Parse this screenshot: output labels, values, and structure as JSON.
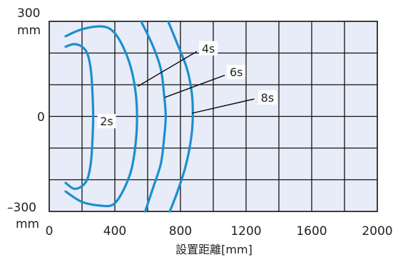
{
  "chart_data": {
    "type": "line",
    "xlabel": "設置距離[mm]",
    "xlim": [
      0,
      2000
    ],
    "ylim": [
      -300,
      300
    ],
    "x_ticks": [
      "0",
      "400",
      "800",
      "1200",
      "1600",
      "2000"
    ],
    "y_ticks": [
      "300",
      "mm",
      "0",
      "–300",
      "mm"
    ],
    "grid": true,
    "series": [
      {
        "name": "2s",
        "color": "#1b8fce",
        "points": [
          [
            100,
            220
          ],
          [
            150,
            228
          ],
          [
            200,
            220
          ],
          [
            235,
            195
          ],
          [
            255,
            140
          ],
          [
            265,
            60
          ],
          [
            268,
            0
          ],
          [
            265,
            -60
          ],
          [
            255,
            -140
          ],
          [
            235,
            -195
          ],
          [
            200,
            -220
          ],
          [
            150,
            -228
          ],
          [
            100,
            -210
          ]
        ]
      },
      {
        "name": "4s",
        "color": "#1b8fce",
        "points": [
          [
            100,
            253
          ],
          [
            200,
            275
          ],
          [
            320,
            284
          ],
          [
            390,
            268
          ],
          [
            450,
            220
          ],
          [
            500,
            150
          ],
          [
            528,
            70
          ],
          [
            535,
            0
          ],
          [
            528,
            -80
          ],
          [
            500,
            -170
          ],
          [
            445,
            -240
          ],
          [
            390,
            -278
          ],
          [
            320,
            -282
          ],
          [
            200,
            -270
          ],
          [
            100,
            -237
          ]
        ]
      },
      {
        "name": "6s",
        "color": "#1b8fce",
        "points": [
          [
            560,
            300
          ],
          [
            630,
            225
          ],
          [
            680,
            150
          ],
          [
            700,
            70
          ],
          [
            710,
            0
          ],
          [
            700,
            -70
          ],
          [
            680,
            -150
          ],
          [
            630,
            -230
          ],
          [
            585,
            -300
          ]
        ]
      },
      {
        "name": "8s",
        "color": "#1b8fce",
        "points": [
          [
            725,
            300
          ],
          [
            780,
            230
          ],
          [
            840,
            150
          ],
          [
            870,
            70
          ],
          [
            875,
            0
          ],
          [
            865,
            -70
          ],
          [
            830,
            -160
          ],
          [
            780,
            -240
          ],
          [
            735,
            -300
          ]
        ]
      }
    ],
    "labels": [
      {
        "text": "2s",
        "x": 350,
        "y": -15
      },
      {
        "text": "4s",
        "x": 970,
        "y": 215
      },
      {
        "text": "6s",
        "x": 1140,
        "y": 140
      },
      {
        "text": "8s",
        "x": 1330,
        "y": 60
      }
    ],
    "leaders": [
      {
        "from": [
          900,
          205
        ],
        "to": [
          540,
          95
        ]
      },
      {
        "from": [
          1070,
          130
        ],
        "to": [
          705,
          60
        ]
      },
      {
        "from": [
          1250,
          55
        ],
        "to": [
          870,
          10
        ]
      }
    ]
  }
}
